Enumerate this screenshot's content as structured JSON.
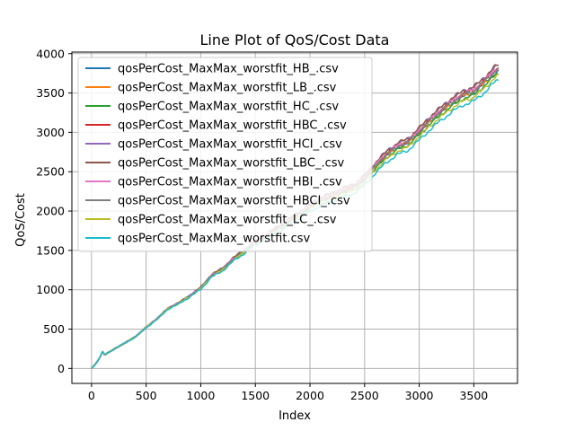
{
  "chart_data": {
    "type": "line",
    "title": "Line Plot of QoS/Cost Data",
    "xlabel": "Index",
    "ylabel": "QoS/Cost",
    "xlim": [
      -180,
      3900
    ],
    "ylim": [
      -190,
      4020
    ],
    "xticks": [
      0,
      500,
      1000,
      1500,
      2000,
      2500,
      3000,
      3500
    ],
    "yticks": [
      0,
      500,
      1000,
      1500,
      2000,
      2500,
      3000,
      3500,
      4000
    ],
    "grid": true,
    "legend_position": "top-left",
    "base_curve": {
      "x": [
        0,
        50,
        80,
        100,
        120,
        200,
        300,
        400,
        500,
        600,
        700,
        800,
        900,
        1000,
        1100,
        1200,
        1300,
        1400,
        1500,
        1600,
        1700,
        1800,
        1900,
        2000,
        2100,
        2200,
        2300,
        2400,
        2500,
        2600,
        2700,
        2800,
        2900,
        3000,
        3100,
        3200,
        3300,
        3400,
        3500,
        3600,
        3700,
        3730
      ],
      "y": [
        0,
        80,
        150,
        215,
        175,
        240,
        320,
        400,
        520,
        630,
        760,
        830,
        920,
        1020,
        1180,
        1260,
        1390,
        1490,
        1600,
        1680,
        1770,
        1860,
        1950,
        2050,
        2130,
        2180,
        2240,
        2290,
        2400,
        2560,
        2700,
        2800,
        2860,
        2990,
        3130,
        3250,
        3360,
        3450,
        3500,
        3620,
        3760,
        3780
      ]
    },
    "series": [
      {
        "name": "qosPerCost_MaxMax_worstfit_HB_.csv",
        "color": "#1f77b4",
        "scale": 1.0,
        "phase": 0.3
      },
      {
        "name": "qosPerCost_MaxMax_worstfit_LB_.csv",
        "color": "#ff7f0e",
        "scale": 1.005,
        "phase": 1.1
      },
      {
        "name": "qosPerCost_MaxMax_worstfit_HC_.csv",
        "color": "#2ca02c",
        "scale": 0.993,
        "phase": 2.0
      },
      {
        "name": "qosPerCost_MaxMax_worstfit_HBC_.csv",
        "color": "#d62728",
        "scale": 1.01,
        "phase": 2.7
      },
      {
        "name": "qosPerCost_MaxMax_worstfit_HCI_.csv",
        "color": "#9467bd",
        "scale": 1.02,
        "phase": 3.5
      },
      {
        "name": "qosPerCost_MaxMax_worstfit_LBC_.csv",
        "color": "#8c564b",
        "scale": 1.022,
        "phase": 4.2
      },
      {
        "name": "qosPerCost_MaxMax_worstfit_HBI_.csv",
        "color": "#e377c2",
        "scale": 1.012,
        "phase": 5.0
      },
      {
        "name": "qosPerCost_MaxMax_worstfit_HBCI_.csv",
        "color": "#7f7f7f",
        "scale": 1.008,
        "phase": 5.8
      },
      {
        "name": "qosPerCost_MaxMax_worstfit_LC_.csv",
        "color": "#bcbd22",
        "scale": 0.985,
        "phase": 0.8
      },
      {
        "name": "qosPerCost_MaxMax_worstfit.csv",
        "color": "#17becf",
        "scale": 0.97,
        "phase": 1.7
      }
    ]
  }
}
